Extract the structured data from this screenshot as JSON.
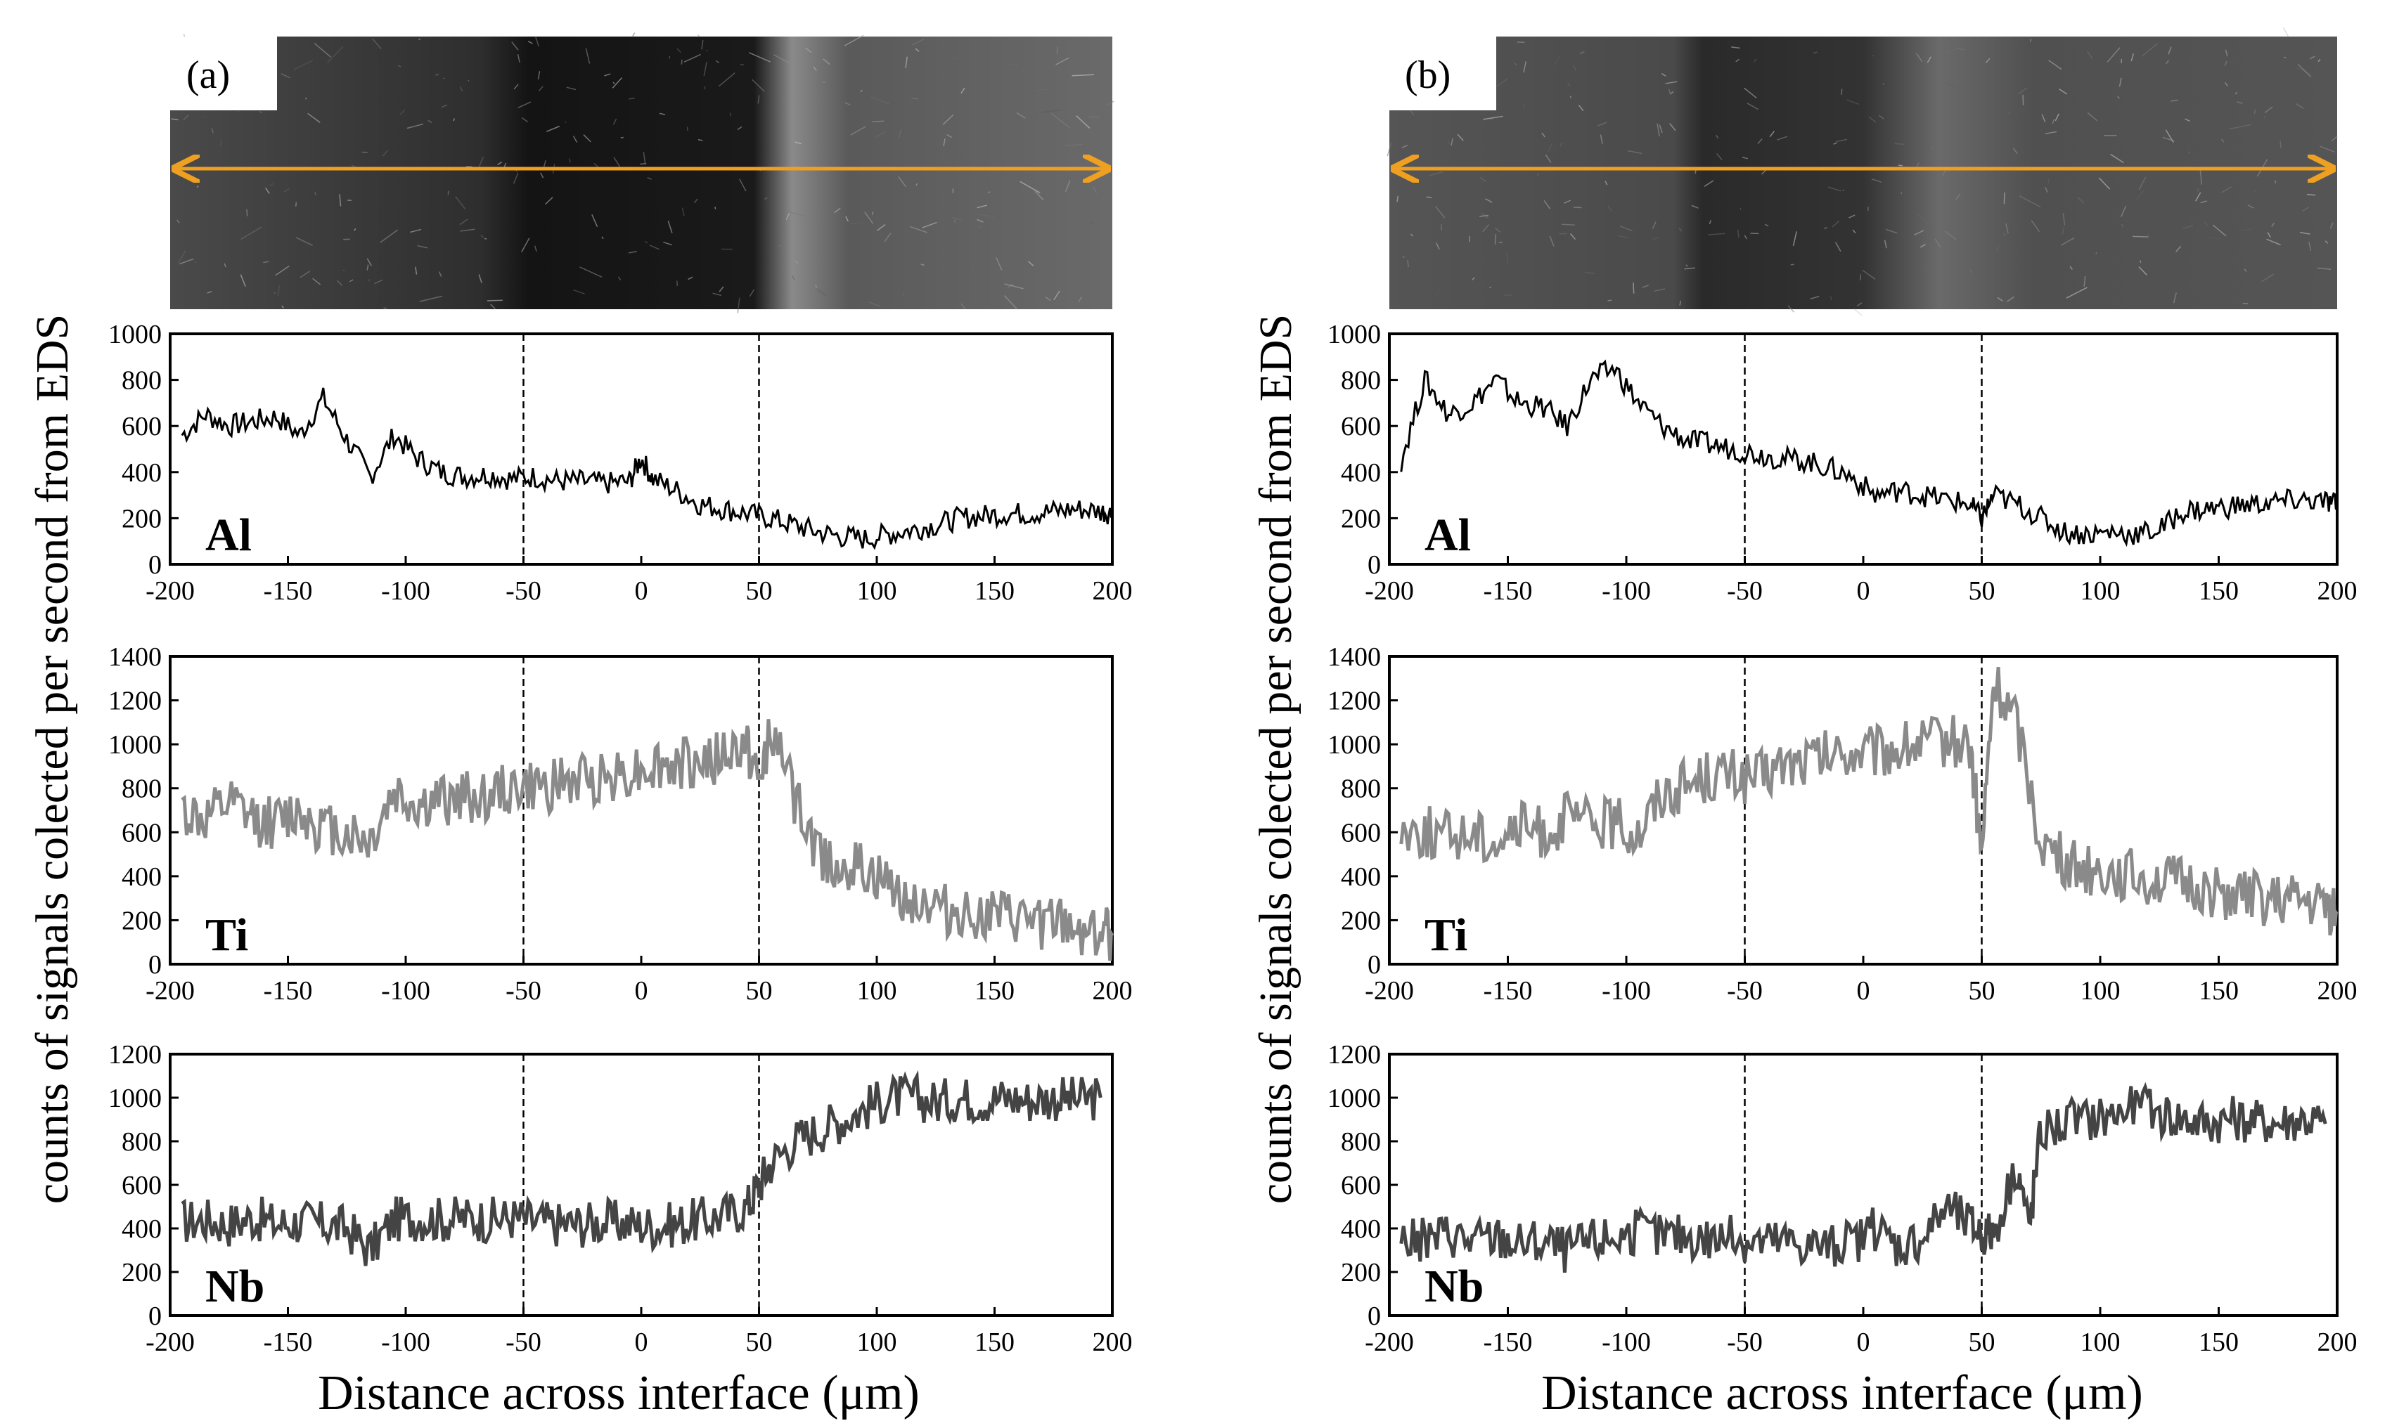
{
  "figure": {
    "ylabel": "counts of signals colected per second from EDS",
    "xlabel": "Distance across interface (μm)"
  },
  "colors": {
    "Al": "#000000",
    "Ti": "#8a8a8a",
    "Nb": "#444444",
    "arrow": "#f0a020",
    "frame": "#000000"
  },
  "panels": [
    {
      "label": "(a)",
      "sem_image": {
        "description_icon": "sem-micrograph"
      },
      "plots": [
        {
          "element": "Al",
          "ylim": [
            0,
            1000
          ],
          "yticks": [
            "0",
            "200",
            "400",
            "600",
            "800",
            "1000"
          ]
        },
        {
          "element": "Ti",
          "ylim": [
            0,
            1400
          ],
          "yticks": [
            "0",
            "200",
            "400",
            "600",
            "800",
            "1000",
            "1200",
            "1400"
          ]
        },
        {
          "element": "Nb",
          "ylim": [
            0,
            1200
          ],
          "yticks": [
            "0",
            "200",
            "400",
            "600",
            "800",
            "1000",
            "1200"
          ]
        }
      ]
    },
    {
      "label": "(b)",
      "sem_image": {
        "description_icon": "sem-micrograph"
      },
      "plots": [
        {
          "element": "Al",
          "ylim": [
            0,
            1000
          ],
          "yticks": [
            "0",
            "200",
            "400",
            "600",
            "800",
            "1000"
          ]
        },
        {
          "element": "Ti",
          "ylim": [
            0,
            1400
          ],
          "yticks": [
            "0",
            "200",
            "400",
            "600",
            "800",
            "1000",
            "1200",
            "1400"
          ]
        },
        {
          "element": "Nb",
          "ylim": [
            0,
            1200
          ],
          "yticks": [
            "0",
            "200",
            "400",
            "600",
            "800",
            "1000",
            "1200"
          ]
        }
      ]
    }
  ],
  "xticks": [
    "-200",
    "-150",
    "-100",
    "-50",
    "0",
    "50",
    "100",
    "150",
    "200"
  ],
  "chart_data": [
    {
      "type": "line",
      "panel": "(a)",
      "xlim": [
        -200,
        200
      ],
      "dashed_lines_x": [
        -50,
        50
      ],
      "series": [
        {
          "name": "Al",
          "ylim": [
            0,
            1000
          ],
          "x": [
            -195,
            -185,
            -175,
            -165,
            -155,
            -145,
            -135,
            -125,
            -115,
            -105,
            -95,
            -85,
            -75,
            -65,
            -55,
            -45,
            -35,
            -25,
            -15,
            -5,
            0,
            5,
            15,
            25,
            35,
            45,
            55,
            65,
            75,
            85,
            95,
            105,
            115,
            125,
            135,
            145,
            155,
            165,
            175,
            185,
            195,
            200
          ],
          "y": [
            560,
            650,
            600,
            620,
            640,
            560,
            720,
            540,
            380,
            560,
            460,
            400,
            380,
            390,
            370,
            380,
            360,
            360,
            350,
            360,
            460,
            370,
            320,
            260,
            240,
            220,
            200,
            170,
            140,
            120,
            110,
            130,
            150,
            170,
            200,
            210,
            220,
            220,
            230,
            240,
            230,
            220
          ]
        },
        {
          "name": "Ti",
          "ylim": [
            0,
            1400
          ],
          "x": [
            -195,
            -185,
            -175,
            -165,
            -155,
            -145,
            -135,
            -125,
            -115,
            -105,
            -95,
            -85,
            -75,
            -65,
            -55,
            -45,
            -35,
            -25,
            -15,
            -5,
            5,
            15,
            25,
            35,
            45,
            50,
            55,
            65,
            75,
            85,
            95,
            105,
            115,
            125,
            135,
            145,
            155,
            165,
            175,
            185,
            195,
            200
          ],
          "y": [
            700,
            650,
            720,
            660,
            640,
            700,
            620,
            600,
            560,
            780,
            720,
            740,
            760,
            760,
            800,
            800,
            820,
            840,
            860,
            880,
            900,
            900,
            920,
            940,
            1000,
            800,
            1100,
            750,
            500,
            450,
            420,
            350,
            300,
            260,
            230,
            220,
            200,
            190,
            180,
            160,
            150,
            130
          ]
        },
        {
          "name": "Nb",
          "ylim": [
            0,
            1200
          ],
          "x": [
            -195,
            -185,
            -175,
            -165,
            -155,
            -145,
            -135,
            -125,
            -115,
            -105,
            -95,
            -85,
            -75,
            -65,
            -55,
            -45,
            -35,
            -25,
            -15,
            -5,
            5,
            15,
            25,
            35,
            45,
            50,
            55,
            65,
            75,
            85,
            95,
            105,
            115,
            125,
            135,
            145,
            155,
            165,
            175,
            185,
            195
          ],
          "y": [
            430,
            440,
            420,
            450,
            420,
            430,
            420,
            400,
            300,
            440,
            450,
            440,
            450,
            440,
            450,
            430,
            420,
            420,
            430,
            420,
            410,
            420,
            440,
            460,
            500,
            600,
            700,
            800,
            850,
            900,
            950,
            1000,
            1000,
            980,
            1000,
            990,
            1000,
            990,
            1000,
            990,
            1000
          ]
        }
      ]
    },
    {
      "type": "line",
      "panel": "(b)",
      "xlim": [
        -200,
        200
      ],
      "dashed_lines_x": [
        -50,
        50
      ],
      "series": [
        {
          "name": "Al",
          "ylim": [
            0,
            1000
          ],
          "x": [
            -195,
            -185,
            -175,
            -165,
            -155,
            -145,
            -135,
            -125,
            -115,
            -105,
            -95,
            -85,
            -75,
            -65,
            -55,
            -45,
            -35,
            -25,
            -15,
            -5,
            5,
            15,
            25,
            35,
            45,
            50,
            55,
            65,
            75,
            85,
            95,
            105,
            115,
            125,
            135,
            145,
            155,
            165,
            175,
            185,
            195,
            200
          ],
          "y": [
            450,
            800,
            650,
            700,
            800,
            700,
            680,
            600,
            800,
            850,
            700,
            600,
            540,
            520,
            500,
            480,
            460,
            450,
            420,
            380,
            300,
            320,
            300,
            280,
            260,
            200,
            300,
            260,
            200,
            140,
            130,
            140,
            130,
            150,
            230,
            240,
            250,
            260,
            270,
            280,
            270,
            260
          ]
        },
        {
          "name": "Ti",
          "ylim": [
            0,
            1400
          ],
          "x": [
            -195,
            -185,
            -175,
            -165,
            -155,
            -145,
            -135,
            -125,
            -115,
            -105,
            -95,
            -85,
            -75,
            -65,
            -55,
            -45,
            -35,
            -25,
            -15,
            -5,
            5,
            15,
            25,
            35,
            45,
            50,
            55,
            65,
            75,
            85,
            95,
            105,
            115,
            125,
            135,
            145,
            155,
            165,
            175,
            185,
            195,
            200
          ],
          "y": [
            620,
            600,
            580,
            600,
            560,
            620,
            600,
            660,
            640,
            640,
            600,
            780,
            820,
            860,
            860,
            840,
            900,
            920,
            940,
            960,
            960,
            980,
            1000,
            1020,
            1000,
            500,
            1280,
            1100,
            560,
            460,
            440,
            420,
            400,
            380,
            360,
            340,
            320,
            300,
            280,
            280,
            260,
            240
          ]
        },
        {
          "name": "Nb",
          "ylim": [
            0,
            1200
          ],
          "x": [
            -195,
            -185,
            -175,
            -165,
            -155,
            -145,
            -135,
            -125,
            -115,
            -105,
            -95,
            -85,
            -75,
            -65,
            -55,
            -45,
            -35,
            -25,
            -15,
            -5,
            5,
            15,
            25,
            35,
            45,
            50,
            55,
            65,
            70,
            75,
            85,
            95,
            105,
            115,
            125,
            135,
            145,
            155,
            165,
            175,
            185,
            195
          ],
          "y": [
            350,
            340,
            380,
            340,
            360,
            330,
            340,
            300,
            340,
            360,
            380,
            360,
            370,
            350,
            360,
            340,
            340,
            330,
            320,
            330,
            400,
            320,
            360,
            500,
            420,
            380,
            380,
            700,
            400,
            850,
            880,
            900,
            920,
            960,
            930,
            900,
            880,
            900,
            890,
            880,
            900,
            880
          ]
        }
      ]
    }
  ]
}
